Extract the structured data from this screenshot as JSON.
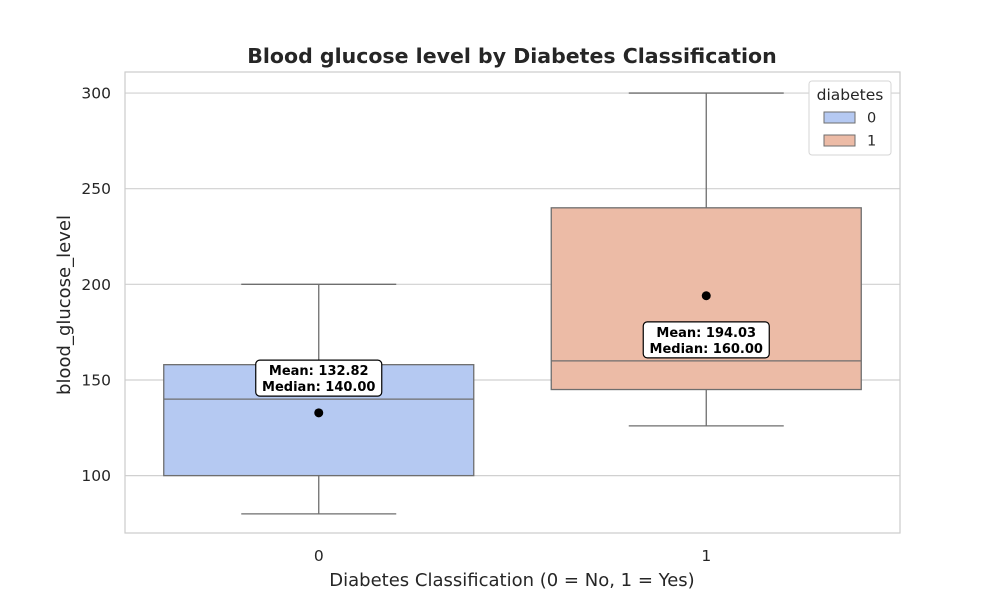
{
  "chart_data": {
    "type": "box",
    "title": "Blood glucose level by Diabetes Classification",
    "xlabel": "Diabetes Classification (0 = No, 1 = Yes)",
    "ylabel": "blood_glucose_level",
    "categories": [
      "0",
      "1"
    ],
    "ylim": [
      70,
      311
    ],
    "yticks": [
      100,
      150,
      200,
      250,
      300
    ],
    "grid": true,
    "legend": {
      "title": "diabetes",
      "placement": "top-right",
      "entries": [
        "0",
        "1"
      ]
    },
    "colors": {
      "0": "#b5c9f2",
      "1": "#ecbba6",
      "edge": "#6e6e6e",
      "grid": "#d0d0d0",
      "mean_marker": "#000000"
    },
    "boxes": [
      {
        "category": "0",
        "whisker_low": 80,
        "q1": 100,
        "median": 140,
        "q3": 158,
        "whisker_high": 200,
        "mean": 132.82,
        "annotation": [
          "Mean: 132.82",
          "Median: 140.00"
        ]
      },
      {
        "category": "1",
        "whisker_low": 126,
        "q1": 145,
        "median": 160,
        "q3": 240,
        "whisker_high": 300,
        "mean": 194.03,
        "annotation": [
          "Mean: 194.03",
          "Median: 160.00"
        ]
      }
    ]
  }
}
